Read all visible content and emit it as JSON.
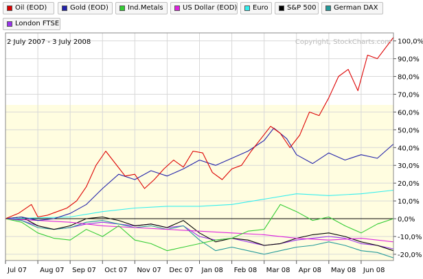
{
  "legend": [
    {
      "label": "Oil (EOD)",
      "color": "#dd0000"
    },
    {
      "label": "Gold (EOD)",
      "color": "#2222aa"
    },
    {
      "label": "Ind.Metals",
      "color": "#33cc33"
    },
    {
      "label": "US Dollar (EOD)",
      "color": "#dd22dd"
    },
    {
      "label": "Euro",
      "color": "#33eeee"
    },
    {
      "label": "S&P 500",
      "color": "#000000"
    },
    {
      "label": "German DAX",
      "color": "#229999"
    },
    {
      "label": "London FTSE",
      "color": "#9933ee"
    }
  ],
  "date_range": "2 July 2007 - 3 July 2008",
  "watermark": "Copyright, StockCharts.com",
  "chart_data": {
    "type": "line",
    "title": "",
    "ylim": [
      -23.5,
      104.5
    ],
    "y_ticks": [
      "100,0%",
      "90,0%",
      "80,0%",
      "70,0%",
      "60,0%",
      "50,0%",
      "40,0%",
      "30,0%",
      "20,0%",
      "10,0%",
      "0,0%",
      "-10,0%",
      "-20,0%"
    ],
    "x_ticks": [
      "Jul 07",
      "Aug 07",
      "Sep 07",
      "Oct 07",
      "Nov 07",
      "Dec 07",
      "Jan 08",
      "Feb 08",
      "Mar 08",
      "Apr 08",
      "May 08",
      "Jun 08"
    ],
    "grid": true,
    "shaded_band": [
      -23.5,
      64
    ],
    "x_unit": "months since 2 July 2007",
    "series": [
      {
        "name": "Oil (EOD)",
        "color": "#dd0000",
        "x": [
          0,
          0.4,
          0.8,
          1.0,
          1.3,
          1.6,
          1.9,
          2.2,
          2.5,
          2.8,
          3.1,
          3.4,
          3.7,
          4.0,
          4.3,
          4.6,
          4.9,
          5.2,
          5.5,
          5.8,
          6.1,
          6.4,
          6.7,
          7.0,
          7.3,
          7.6,
          7.9,
          8.2,
          8.5,
          8.8,
          9.1,
          9.4,
          9.7,
          10.0,
          10.3,
          10.6,
          10.9,
          11.2,
          11.5,
          12.0
        ],
        "y": [
          0,
          3,
          8,
          1,
          2,
          4,
          6,
          10,
          18,
          30,
          38,
          31,
          24,
          25,
          17,
          22,
          28,
          33,
          29,
          38,
          37,
          26,
          22,
          28,
          30,
          38,
          45,
          52,
          48,
          40,
          47,
          60,
          58,
          68,
          80,
          84,
          72,
          92,
          90,
          102
        ]
      },
      {
        "name": "Gold (EOD)",
        "color": "#2222aa",
        "x": [
          0,
          0.5,
          1.0,
          1.5,
          2.0,
          2.5,
          3.0,
          3.5,
          4.0,
          4.5,
          5.0,
          5.5,
          6.0,
          6.5,
          7.0,
          7.5,
          8.0,
          8.3,
          8.7,
          9.0,
          9.5,
          10.0,
          10.5,
          11.0,
          11.5,
          12.0
        ],
        "y": [
          0,
          1,
          -1,
          0,
          3,
          8,
          17,
          25,
          22,
          27,
          24,
          28,
          33,
          30,
          34,
          38,
          44,
          51,
          45,
          36,
          31,
          37,
          33,
          36,
          34,
          42
        ]
      },
      {
        "name": "Ind.Metals",
        "color": "#33cc33",
        "x": [
          0,
          0.5,
          1.0,
          1.5,
          2.0,
          2.5,
          3.0,
          3.5,
          4.0,
          4.5,
          5.0,
          5.5,
          6.0,
          6.5,
          7.0,
          7.5,
          8.0,
          8.5,
          9.0,
          9.5,
          10.0,
          10.5,
          11.0,
          11.5,
          12.0
        ],
        "y": [
          0,
          -2,
          -8,
          -11,
          -12,
          -6,
          -10,
          -4,
          -12,
          -14,
          -18,
          -16,
          -14,
          -12,
          -11,
          -7,
          -6,
          8,
          4,
          -1,
          1,
          -4,
          -8,
          -3,
          0
        ]
      },
      {
        "name": "US Dollar (EOD)",
        "color": "#dd22dd",
        "x": [
          0,
          1,
          2,
          3,
          4,
          5,
          6,
          7,
          8,
          9,
          10,
          11,
          12
        ],
        "y": [
          0,
          -1,
          -2,
          -4,
          -5,
          -6,
          -7,
          -8,
          -9,
          -11,
          -12,
          -11,
          -13
        ]
      },
      {
        "name": "Euro",
        "color": "#33eeee",
        "x": [
          0,
          1,
          2,
          3,
          4,
          5,
          6,
          7,
          8,
          9,
          10,
          11,
          12
        ],
        "y": [
          0,
          0.5,
          1,
          4,
          6,
          7,
          7,
          8,
          11,
          14,
          13,
          14,
          16
        ]
      },
      {
        "name": "S&P 500",
        "color": "#000000",
        "x": [
          0,
          0.5,
          1.0,
          1.5,
          2.0,
          2.5,
          3.0,
          3.5,
          4.0,
          4.5,
          5.0,
          5.5,
          6.0,
          6.5,
          7.0,
          7.5,
          8.0,
          8.5,
          9.0,
          9.5,
          10.0,
          10.5,
          11.0,
          11.5,
          12.0
        ],
        "y": [
          0,
          1,
          -4,
          -6,
          -4,
          0,
          1,
          -1,
          -4,
          -3,
          -5,
          -1,
          -8,
          -13,
          -11,
          -12,
          -15,
          -14,
          -11,
          -9,
          -8,
          -10,
          -13,
          -15,
          -18
        ]
      },
      {
        "name": "German DAX",
        "color": "#229999",
        "x": [
          0,
          0.5,
          1.0,
          1.5,
          2.0,
          2.5,
          3.0,
          3.5,
          4.0,
          4.5,
          5.0,
          5.5,
          6.0,
          6.5,
          7.0,
          7.5,
          8.0,
          8.5,
          9.0,
          9.5,
          10.0,
          10.5,
          11.0,
          11.5,
          12.0
        ],
        "y": [
          0,
          -1,
          -5,
          -6,
          -5,
          -2,
          -1,
          -3,
          -5,
          -4,
          -6,
          -4,
          -12,
          -18,
          -16,
          -18,
          -20,
          -18,
          -16,
          -15,
          -13,
          -15,
          -18,
          -19,
          -22
        ]
      },
      {
        "name": "London FTSE",
        "color": "#9933ee",
        "x": [
          0,
          0.5,
          1.0,
          1.5,
          2.0,
          2.5,
          3.0,
          3.5,
          4.0,
          4.5,
          5.0,
          5.5,
          6.0,
          6.5,
          7.0,
          7.5,
          8.0,
          8.5,
          9.0,
          9.5,
          10.0,
          10.5,
          11.0,
          11.5,
          12.0
        ],
        "y": [
          0,
          -1,
          -4,
          -6,
          -5,
          -3,
          -2,
          -3,
          -4,
          -3,
          -5,
          -4,
          -10,
          -12,
          -11,
          -13,
          -15,
          -14,
          -12,
          -11,
          -10,
          -11,
          -14,
          -15,
          -17
        ]
      }
    ]
  }
}
